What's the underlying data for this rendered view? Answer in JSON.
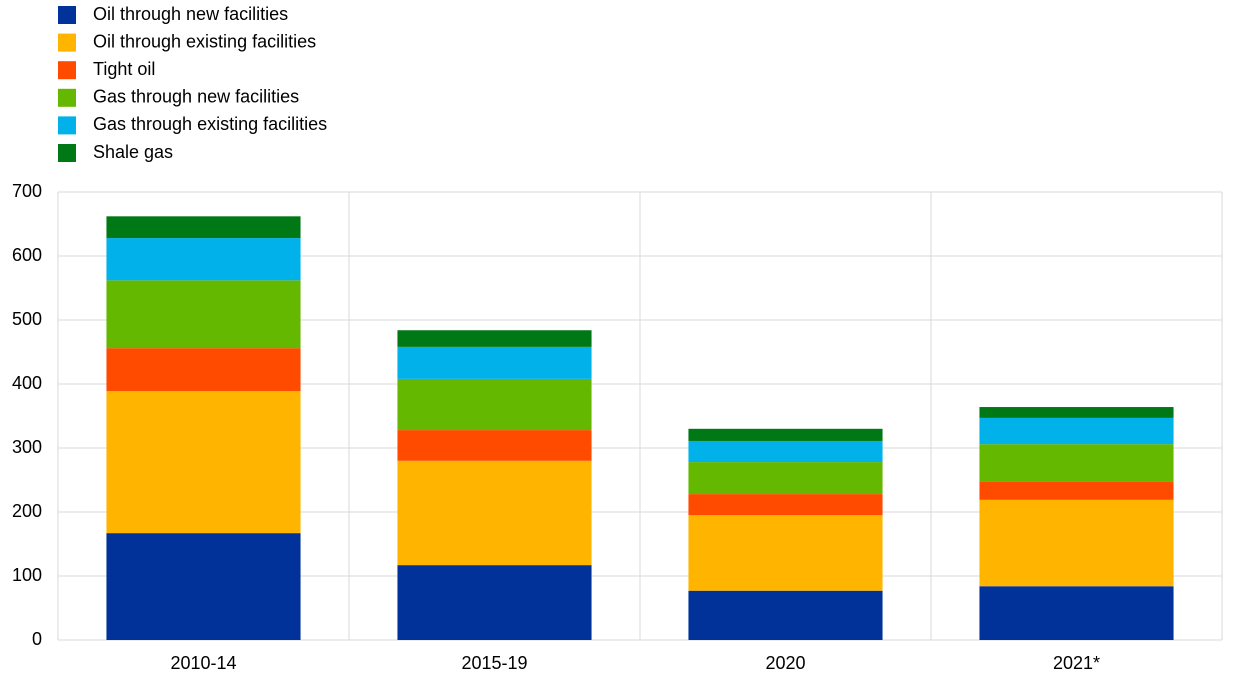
{
  "chart_data": {
    "type": "stacked_bar",
    "categories": [
      "2010-14",
      "2015-19",
      "2020",
      "2021*"
    ],
    "series": [
      {
        "name": "Oil through new facilities",
        "color": "#003299",
        "values": [
          167,
          117,
          77,
          84
        ]
      },
      {
        "name": "Oil through existing facilities",
        "color": "#ffb400",
        "values": [
          222,
          163,
          118,
          135
        ]
      },
      {
        "name": "Tight oil",
        "color": "#ff4b00",
        "values": [
          67,
          48,
          33,
          29
        ]
      },
      {
        "name": "Gas through new facilities",
        "color": "#65b800",
        "values": [
          106,
          80,
          50,
          58
        ]
      },
      {
        "name": "Gas through existing facilities",
        "color": "#00b1ea",
        "values": [
          66,
          50,
          33,
          41
        ]
      },
      {
        "name": "Shale gas",
        "color": "#007816",
        "values": [
          34,
          26,
          19,
          17
        ]
      }
    ],
    "ylim": [
      0,
      700
    ],
    "yticks": [
      0,
      100,
      200,
      300,
      400,
      500,
      600,
      700
    ],
    "grid": true
  }
}
